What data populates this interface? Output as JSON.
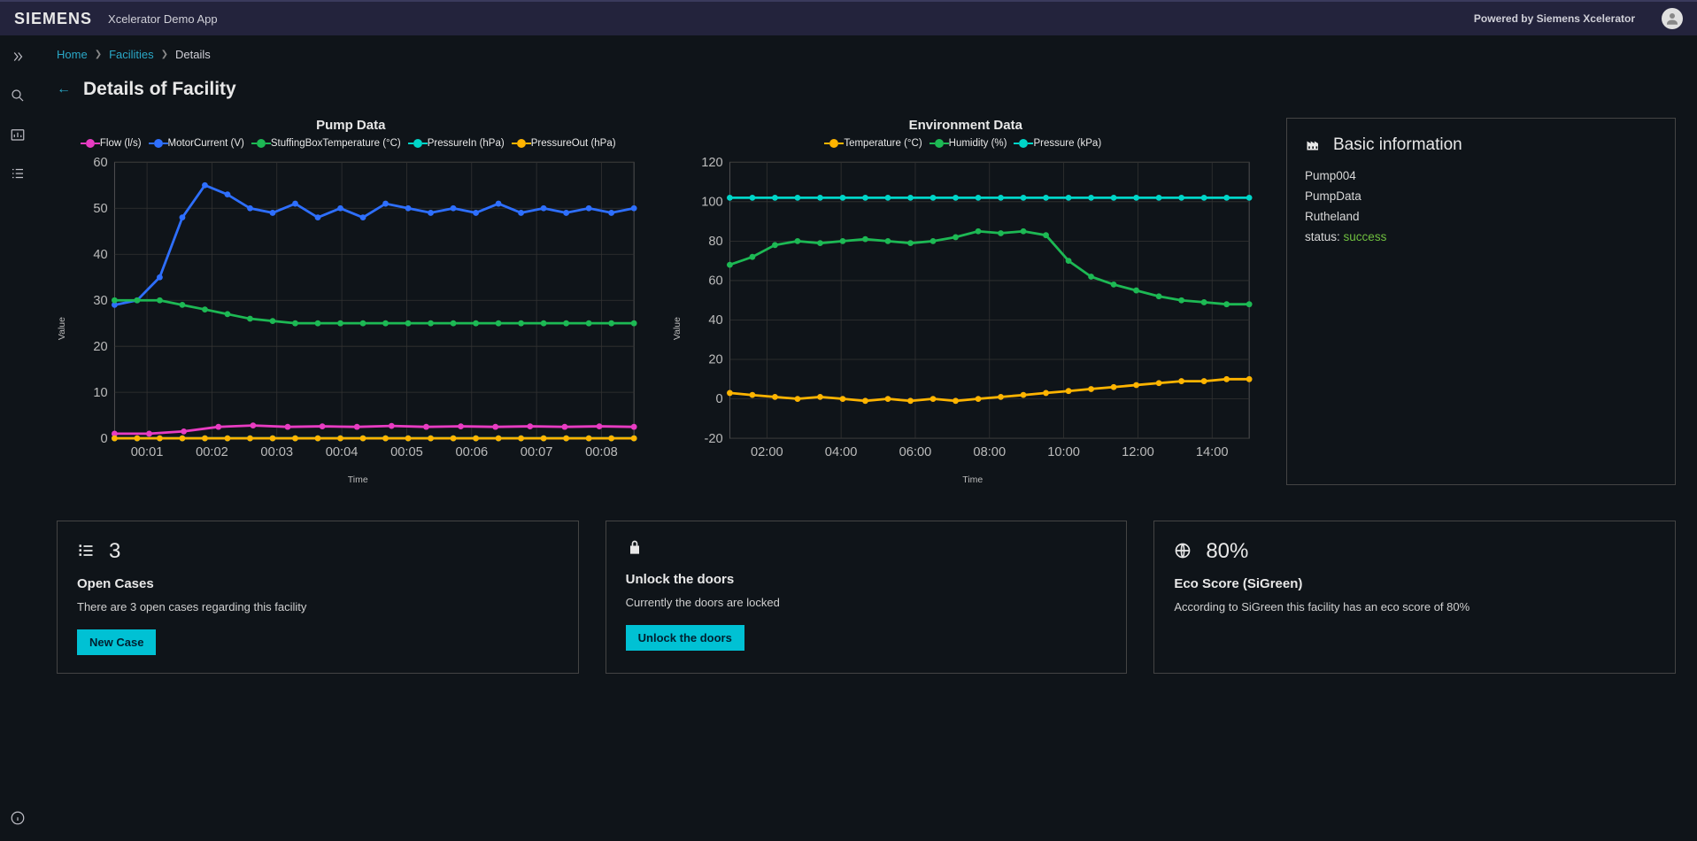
{
  "header": {
    "brand": "SIEMENS",
    "app_title": "Xcelerator Demo App",
    "powered": "Powered by Siemens Xcelerator"
  },
  "breadcrumb": {
    "items": [
      {
        "label": "Home",
        "link": true
      },
      {
        "label": "Facilities",
        "link": true
      },
      {
        "label": "Details",
        "link": false
      }
    ]
  },
  "page_title": "Details of Facility",
  "charts": {
    "pump": {
      "type": "line",
      "title": "Pump Data",
      "x_label": "Time",
      "y_label": "Value",
      "ylim": [
        0,
        60
      ],
      "ytick_step": 10,
      "x_ticks": [
        "00:01",
        "00:02",
        "00:03",
        "00:04",
        "00:05",
        "00:06",
        "00:07",
        "00:08"
      ],
      "grid_color": "#333",
      "background": "#0f1419",
      "series": [
        {
          "name": "Flow (l/s)",
          "color": "#e83cc2",
          "values": [
            1,
            1,
            1.5,
            2.5,
            2.8,
            2.5,
            2.6,
            2.5,
            2.7,
            2.5,
            2.6,
            2.5,
            2.6,
            2.5,
            2.6,
            2.5
          ]
        },
        {
          "name": "MotorCurrent (V)",
          "color": "#2e6fff",
          "values": [
            29,
            30,
            35,
            48,
            55,
            53,
            50,
            49,
            51,
            48,
            50,
            48,
            51,
            50,
            49,
            50,
            49,
            51,
            49,
            50,
            49,
            50,
            49,
            50
          ]
        },
        {
          "name": "StuffingBoxTemperature (°C)",
          "color": "#1db954",
          "values": [
            30,
            30,
            30,
            29,
            28,
            27,
            26,
            25.5,
            25,
            25,
            25,
            25,
            25,
            25,
            25,
            25,
            25,
            25,
            25,
            25,
            25,
            25,
            25,
            25
          ]
        },
        {
          "name": "PressureIn (hPa)",
          "color": "#00d5c8",
          "values": [
            0,
            0,
            0,
            0,
            0,
            0,
            0,
            0,
            0,
            0,
            0,
            0,
            0,
            0,
            0,
            0,
            0,
            0,
            0,
            0,
            0,
            0,
            0,
            0
          ]
        },
        {
          "name": "PressureOut (hPa)",
          "color": "#ffb400",
          "values": [
            0,
            0,
            0,
            0,
            0,
            0,
            0,
            0,
            0,
            0,
            0,
            0,
            0,
            0,
            0,
            0,
            0,
            0,
            0,
            0,
            0,
            0,
            0,
            0
          ]
        }
      ]
    },
    "env": {
      "type": "line",
      "title": "Environment Data",
      "x_label": "Time",
      "y_label": "Value",
      "ylim": [
        -20,
        120
      ],
      "ytick_step": 20,
      "x_ticks": [
        "02:00",
        "04:00",
        "06:00",
        "08:00",
        "10:00",
        "12:00",
        "14:00"
      ],
      "grid_color": "#333",
      "background": "#0f1419",
      "series": [
        {
          "name": "Temperature (°C)",
          "color": "#ffb400",
          "values": [
            3,
            2,
            1,
            0,
            1,
            0,
            -1,
            0,
            -1,
            0,
            -1,
            0,
            1,
            2,
            3,
            4,
            5,
            6,
            7,
            8,
            9,
            9,
            10,
            10
          ]
        },
        {
          "name": "Humidity (%)",
          "color": "#1db954",
          "values": [
            68,
            72,
            78,
            80,
            79,
            80,
            81,
            80,
            79,
            80,
            82,
            85,
            84,
            85,
            83,
            70,
            62,
            58,
            55,
            52,
            50,
            49,
            48,
            48
          ]
        },
        {
          "name": "Pressure (kPa)",
          "color": "#00d5c8",
          "values": [
            102,
            102,
            102,
            102,
            102,
            102,
            102,
            102,
            102,
            102,
            102,
            102,
            102,
            102,
            102,
            102,
            102,
            102,
            102,
            102,
            102,
            102,
            102,
            102
          ]
        }
      ]
    }
  },
  "info": {
    "title": "Basic information",
    "lines": [
      "Pump004",
      "PumpData",
      "Rutheland"
    ],
    "status_label": "status:",
    "status_value": "success"
  },
  "cards": {
    "cases": {
      "count": "3",
      "heading": "Open Cases",
      "text": "There are 3 open cases regarding this facility",
      "button": "New Case"
    },
    "doors": {
      "heading": "Unlock the doors",
      "text": "Currently the doors are locked",
      "button": "Unlock the doors"
    },
    "eco": {
      "value": "80%",
      "heading": "Eco Score (SiGreen)",
      "text": "According to SiGreen this facility has an eco score of 80%"
    }
  },
  "colors": {
    "link": "#2aa8c7",
    "accent": "#00c1d4",
    "success": "#6fbf3f",
    "border": "#444"
  }
}
